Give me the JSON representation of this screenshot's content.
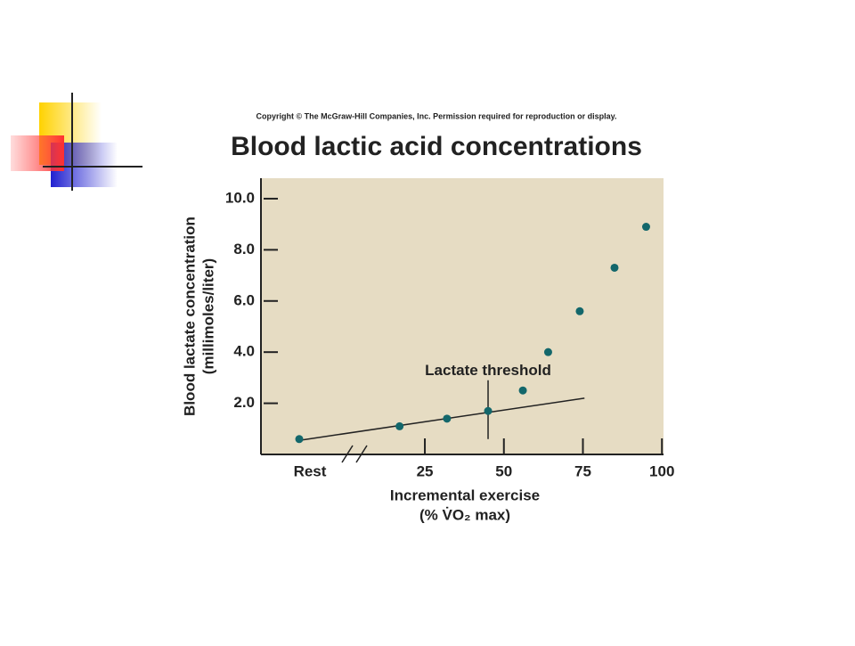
{
  "chart_data": {
    "type": "scatter",
    "copyright": "Copyright © The McGraw-Hill Companies, Inc. Permission required for reproduction or display.",
    "title": "Blood lactic acid concentrations",
    "y_label": [
      "Blood lactate concentration",
      "(millimoles/liter)"
    ],
    "x_label": [
      "Incremental exercise",
      "(% V̇O₂ max)"
    ],
    "color": "#13676b",
    "background": "#e6dcc3",
    "rest_point": {
      "label": "Rest",
      "value": 0.6
    },
    "x": [
      17,
      32,
      45,
      56,
      64,
      74,
      85,
      95
    ],
    "values": [
      1.1,
      1.4,
      1.7,
      2.5,
      4.0,
      5.6,
      7.3,
      8.9
    ],
    "trend_line": {
      "y": [
        0.55,
        2.2
      ],
      "end_x": 75.5
    },
    "threshold": {
      "label": "Lactate threshold",
      "x": 45,
      "y": [
        0.6,
        2.9
      ]
    },
    "xlim": [
      8,
      100.5
    ],
    "xticks": [
      25,
      50,
      75,
      100
    ],
    "ylim": [
      0,
      10.8
    ],
    "yticks": [
      {
        "value": 2,
        "label": "2.0"
      },
      {
        "value": 4,
        "label": "4.0"
      },
      {
        "value": 6,
        "label": "6.0"
      },
      {
        "value": 8,
        "label": "8.0"
      },
      {
        "value": 10,
        "label": "10.0"
      }
    ]
  }
}
